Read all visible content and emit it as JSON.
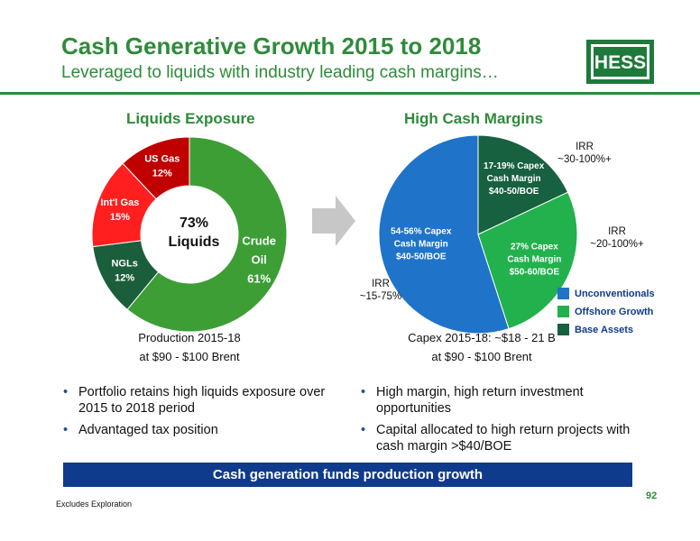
{
  "header": {
    "title": "Cash Generative Growth 2015 to 2018",
    "subtitle": "Leveraged to liquids with industry leading cash margins…",
    "logo_text": "HESS"
  },
  "left_chart": {
    "title": "Liquids Exposure",
    "center_line1": "73%",
    "center_line2": "Liquids",
    "caption_line1": "Production 2015-18",
    "caption_line2": "at $90 - $100 Brent"
  },
  "right_chart": {
    "title": "High Cash Margins",
    "caption_line1": "Capex 2015-18: ~$18 - 21 B",
    "caption_line2": "at $90 - $100 Brent",
    "irr_labels": [
      {
        "line1": "IRR",
        "line2": "~30-100%+"
      },
      {
        "line1": "IRR",
        "line2": "~20-100%+"
      },
      {
        "line1": "IRR",
        "line2": "~15-75%"
      }
    ],
    "legend": [
      {
        "label": "Unconventionals",
        "color": "#1f74c9"
      },
      {
        "label": "Offshore Growth",
        "color": "#22b14c"
      },
      {
        "label": "Base Assets",
        "color": "#176040"
      }
    ]
  },
  "chart_data": [
    {
      "type": "pie",
      "title": "Liquids Exposure",
      "slices": [
        {
          "label_lines": [
            "Crude",
            "Oil",
            "61%"
          ],
          "value": 61,
          "color": "#3c9e35"
        },
        {
          "label_lines": [
            "NGLs",
            "12%"
          ],
          "value": 12,
          "color": "#1b5e3b"
        },
        {
          "label_lines": [
            "Int'l Gas",
            "15%"
          ],
          "value": 15,
          "color": "#ff1f1f"
        },
        {
          "label_lines": [
            "US Gas",
            "12%"
          ],
          "value": 12,
          "color": "#c00000"
        }
      ]
    },
    {
      "type": "pie",
      "title": "High Cash Margins",
      "slices": [
        {
          "label_lines": [
            "17-19% Capex",
            "Cash Margin",
            "$40-50/BOE"
          ],
          "value": 18,
          "color": "#176040"
        },
        {
          "label_lines": [
            "27% Capex",
            "Cash Margin",
            "$50-60/BOE"
          ],
          "value": 27,
          "color": "#22b14c"
        },
        {
          "label_lines": [
            "54-56% Capex",
            "Cash Margin",
            "$40-50/BOE"
          ],
          "value": 55,
          "color": "#1f74c9"
        }
      ]
    }
  ],
  "bullets_left": [
    "Portfolio retains high liquids exposure over 2015 to 2018 period",
    "Advantaged tax position"
  ],
  "bullets_right": [
    "High margin, high return investment opportunities",
    "Capital allocated to high return projects with cash margin >$40/BOE"
  ],
  "banner": "Cash generation funds production growth",
  "footnote": "Excludes Exploration",
  "page_number": "92"
}
